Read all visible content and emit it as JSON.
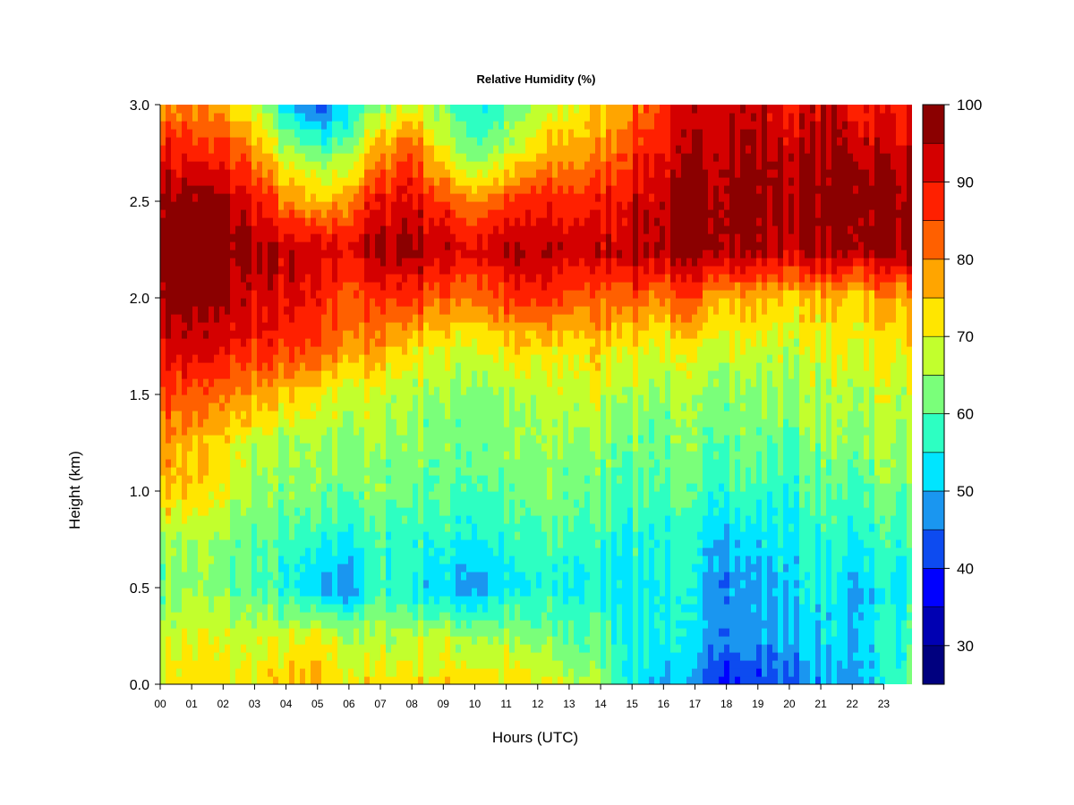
{
  "chart_data": {
    "type": "heatmap",
    "title": "Relative Humidity (%)",
    "xlabel": "Hours (UTC)",
    "ylabel": "Height (km)",
    "xlim": [
      0,
      23.9
    ],
    "ylim": [
      0.0,
      3.0
    ],
    "x_ticks": [
      0,
      1,
      2,
      3,
      4,
      5,
      6,
      7,
      8,
      9,
      10,
      11,
      12,
      13,
      14,
      15,
      16,
      17,
      18,
      19,
      20,
      21,
      22,
      23
    ],
    "x_tick_labels": [
      "00",
      "01",
      "02",
      "03",
      "04",
      "05",
      "06",
      "07",
      "08",
      "09",
      "10",
      "11",
      "12",
      "13",
      "14",
      "15",
      "16",
      "17",
      "18",
      "19",
      "20",
      "21",
      "22",
      "23"
    ],
    "y_ticks": [
      0.0,
      0.5,
      1.0,
      1.5,
      2.0,
      2.5,
      3.0
    ],
    "y_tick_labels": [
      "0.0",
      "0.5",
      "1.0",
      "1.5",
      "2.0",
      "2.5",
      "3.0"
    ],
    "colorbar": {
      "levels": [
        25,
        30,
        35,
        40,
        45,
        50,
        55,
        60,
        65,
        70,
        75,
        80,
        85,
        90,
        95,
        100
      ],
      "tick_values": [
        30,
        40,
        50,
        60,
        70,
        80,
        90,
        100
      ],
      "tick_labels": [
        "30",
        "40",
        "50",
        "60",
        "70",
        "80",
        "90",
        "100"
      ],
      "colors": [
        "#00007f",
        "#0000b2",
        "#0000ff",
        "#0d4bf0",
        "#1a96f0",
        "#00e5ff",
        "#2dffc2",
        "#7aff7a",
        "#c2ff2d",
        "#ffe600",
        "#ffa500",
        "#ff6000",
        "#ff2000",
        "#d40000",
        "#8b0000"
      ]
    },
    "heights": [
      0.0,
      0.25,
      0.5,
      0.75,
      1.0,
      1.25,
      1.5,
      1.75,
      2.0,
      2.25,
      2.5,
      2.75,
      3.0
    ],
    "hours": [
      0,
      1,
      2,
      3,
      4,
      5,
      6,
      7,
      8,
      9,
      10,
      11,
      12,
      13,
      14,
      15,
      16,
      17,
      18,
      19,
      20,
      21,
      22,
      23,
      23.9
    ],
    "values": [
      [
        72,
        73,
        72,
        72,
        74,
        75,
        72,
        72,
        74,
        73,
        74,
        73,
        70,
        68,
        64,
        55,
        50,
        46,
        40,
        40,
        45,
        48,
        48,
        55,
        62
      ],
      [
        68,
        70,
        68,
        68,
        68,
        70,
        66,
        66,
        68,
        66,
        66,
        64,
        62,
        60,
        60,
        55,
        55,
        52,
        48,
        48,
        50,
        52,
        52,
        55,
        58
      ],
      [
        62,
        64,
        62,
        60,
        55,
        48,
        48,
        58,
        55,
        50,
        48,
        52,
        55,
        55,
        55,
        55,
        55,
        52,
        48,
        48,
        52,
        55,
        50,
        55,
        55
      ],
      [
        66,
        66,
        64,
        60,
        58,
        55,
        55,
        58,
        58,
        56,
        56,
        56,
        58,
        58,
        58,
        56,
        56,
        54,
        52,
        52,
        54,
        56,
        56,
        58,
        58
      ],
      [
        75,
        74,
        70,
        64,
        62,
        62,
        62,
        62,
        62,
        60,
        60,
        60,
        62,
        62,
        60,
        60,
        60,
        58,
        58,
        58,
        56,
        60,
        58,
        62,
        62
      ],
      [
        80,
        76,
        72,
        68,
        64,
        64,
        64,
        64,
        64,
        62,
        62,
        62,
        64,
        64,
        64,
        62,
        62,
        62,
        62,
        62,
        60,
        64,
        64,
        66,
        66
      ],
      [
        86,
        84,
        80,
        78,
        74,
        70,
        68,
        68,
        66,
        64,
        64,
        64,
        66,
        68,
        68,
        66,
        64,
        64,
        64,
        64,
        64,
        66,
        66,
        68,
        68
      ],
      [
        92,
        92,
        90,
        88,
        86,
        84,
        80,
        78,
        74,
        70,
        70,
        72,
        72,
        72,
        74,
        72,
        70,
        70,
        70,
        68,
        68,
        70,
        70,
        72,
        72
      ],
      [
        98,
        98,
        96,
        92,
        90,
        88,
        84,
        86,
        86,
        82,
        82,
        86,
        86,
        84,
        82,
        84,
        80,
        82,
        78,
        76,
        74,
        76,
        74,
        78,
        78
      ],
      [
        100,
        100,
        98,
        96,
        94,
        92,
        92,
        96,
        97,
        94,
        92,
        94,
        94,
        94,
        94,
        96,
        96,
        98,
        98,
        96,
        94,
        96,
        96,
        98,
        98
      ],
      [
        98,
        98,
        96,
        90,
        80,
        74,
        80,
        90,
        92,
        85,
        80,
        85,
        88,
        88,
        88,
        92,
        94,
        98,
        98,
        98,
        96,
        98,
        98,
        98,
        98
      ],
      [
        90,
        88,
        86,
        80,
        66,
        60,
        66,
        78,
        86,
        70,
        62,
        66,
        74,
        78,
        80,
        88,
        90,
        94,
        96,
        96,
        94,
        96,
        96,
        94,
        94
      ],
      [
        80,
        80,
        76,
        68,
        52,
        40,
        55,
        64,
        70,
        62,
        55,
        58,
        65,
        70,
        74,
        80,
        86,
        92,
        94,
        92,
        90,
        92,
        90,
        88,
        88
      ]
    ]
  }
}
